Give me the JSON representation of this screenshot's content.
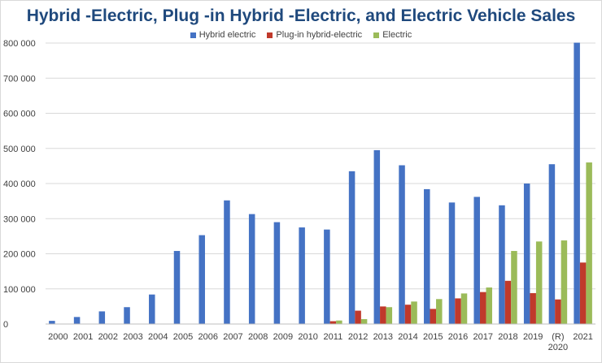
{
  "chart_data": {
    "type": "bar",
    "title": "Hybrid -Electric, Plug -in Hybrid -Electric, and Electric Vehicle Sales",
    "xlabel": "",
    "ylabel": "",
    "ylim": [
      0,
      800000
    ],
    "y_ticks": [
      "0",
      "100 000",
      "200 000",
      "300 000",
      "400 000",
      "500 000",
      "600 000",
      "700 000",
      "800 000"
    ],
    "grid": true,
    "legend_position": "top",
    "categories": [
      "2000",
      "2001",
      "2002",
      "2003",
      "2004",
      "2005",
      "2006",
      "2007",
      "2008",
      "2009",
      "2010",
      "2011",
      "2012",
      "2013",
      "2014",
      "2015",
      "2016",
      "2017",
      "2018",
      "2019",
      "(R)\n2020",
      "2021"
    ],
    "series": [
      {
        "name": "Hybrid electric",
        "color": "#4472c4",
        "values": [
          9000,
          20000,
          36000,
          48000,
          84000,
          208000,
          253000,
          352000,
          313000,
          290000,
          275000,
          269000,
          435000,
          495000,
          452000,
          384000,
          346000,
          362000,
          338000,
          400000,
          455000,
          801000
        ]
      },
      {
        "name": "Plug-in hybrid-electric",
        "color": "#c0392b",
        "values": [
          0,
          0,
          0,
          0,
          0,
          0,
          0,
          0,
          0,
          0,
          300,
          8000,
          38000,
          50000,
          55000,
          43000,
          73000,
          91000,
          123000,
          88000,
          70000,
          175000
        ]
      },
      {
        "name": "Electric",
        "color": "#9bbb59",
        "values": [
          0,
          0,
          0,
          0,
          0,
          0,
          0,
          0,
          0,
          0,
          0,
          10000,
          14000,
          48000,
          64000,
          71000,
          87000,
          104000,
          208000,
          235000,
          238000,
          460000
        ]
      }
    ]
  }
}
